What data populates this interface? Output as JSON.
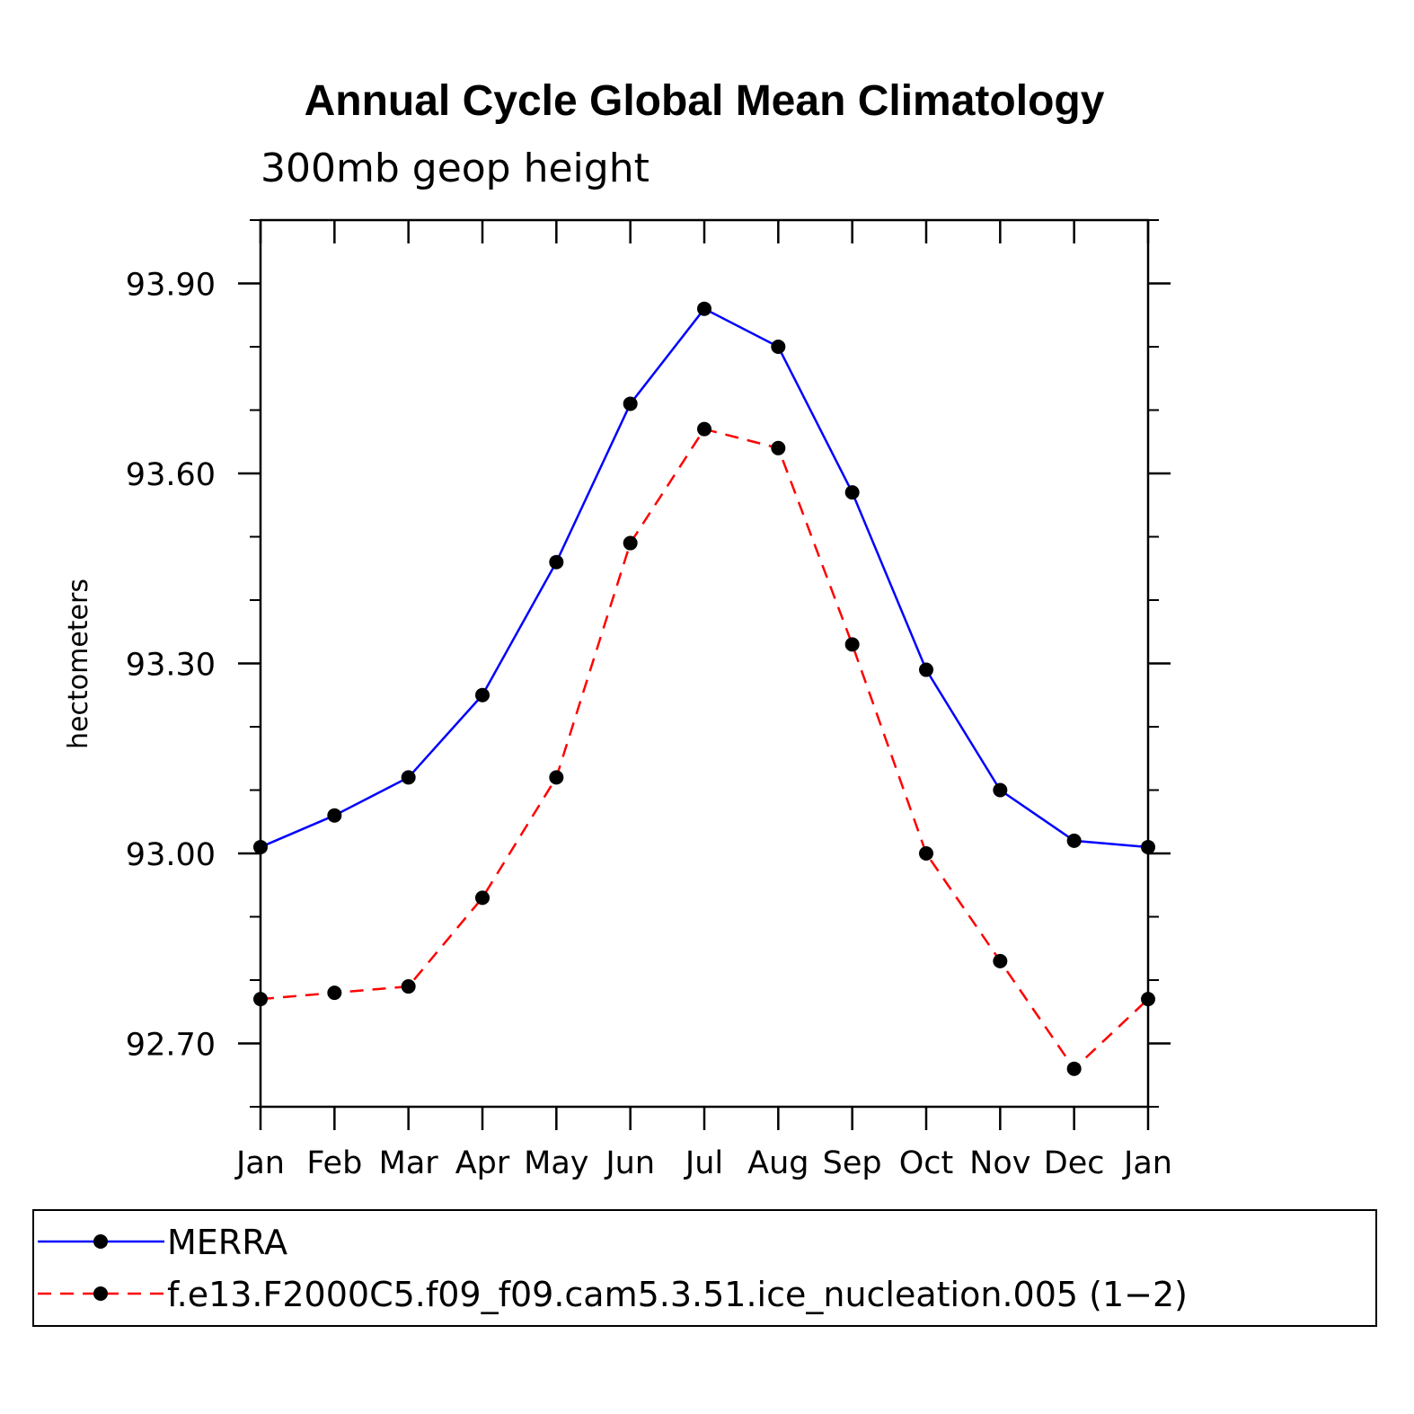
{
  "chart_data": {
    "type": "line",
    "title": "Annual Cycle Global Mean Climatology",
    "subtitle": "300mb geop height",
    "xlabel": "",
    "ylabel": "hectometers",
    "categories": [
      "Jan",
      "Feb",
      "Mar",
      "Apr",
      "May",
      "Jun",
      "Jul",
      "Aug",
      "Sep",
      "Oct",
      "Nov",
      "Dec",
      "Jan"
    ],
    "ylim": [
      92.6,
      94.0
    ],
    "yticks": [
      92.7,
      93.0,
      93.3,
      93.6,
      93.9
    ],
    "ytick_labels": [
      "92.70",
      "93.00",
      "93.30",
      "93.60",
      "93.90"
    ],
    "grid": false,
    "legend_position": "bottom",
    "series": [
      {
        "name": "MERRA",
        "color": "#0000ff",
        "style": "solid",
        "marker": "circle",
        "values": [
          93.01,
          93.06,
          93.12,
          93.25,
          93.46,
          93.71,
          93.86,
          93.8,
          93.57,
          93.29,
          93.1,
          93.02,
          93.01
        ]
      },
      {
        "name": "f.e13.F2000C5.f09_f09.cam5.3.51.ice_nucleation.005 (1−2)",
        "color": "#ff0000",
        "style": "dashed",
        "marker": "circle",
        "values": [
          92.77,
          92.78,
          92.79,
          92.93,
          93.12,
          93.49,
          93.67,
          93.64,
          93.33,
          93.0,
          92.83,
          92.66,
          92.77
        ]
      }
    ]
  }
}
